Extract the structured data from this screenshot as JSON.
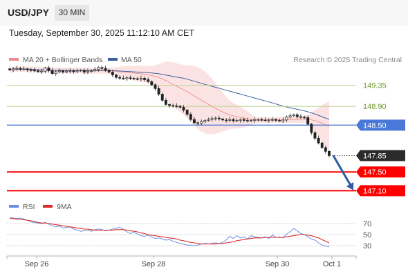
{
  "header": {
    "symbol": "USD/JPY",
    "timeframe": "30 MIN",
    "datetime": "Tuesday, September 30, 2025 11:12:10 AM CET",
    "credit": "Research © 2025 Trading Central"
  },
  "colors": {
    "bollinger": "#f08a8a",
    "bollinger_fill": "#fbdada",
    "ma50": "#3a5fa0",
    "resistance": "#b7d18c",
    "pivot": "#4a78d8",
    "support": "#ff0000",
    "arrow": "#2d5aa0",
    "rsi": "#6b8fe0",
    "rsi_ma": "#dd2a2a"
  },
  "chart_data": [
    {
      "type": "candlestick",
      "title": "USD/JPY",
      "legend": [
        "MA 20 + Bollinger Bands",
        "MA 50"
      ],
      "ylim": [
        146.9,
        149.55
      ],
      "x_ticks": [
        "Sep 26",
        "Sep 28",
        "Sep 30",
        "Oct 1"
      ],
      "close": [
        149.68,
        149.7,
        149.71,
        149.69,
        149.7,
        149.68,
        149.67,
        149.66,
        149.64,
        149.65,
        149.72,
        149.66,
        149.6,
        149.64,
        149.66,
        149.63,
        149.65,
        149.66,
        149.64,
        149.66,
        149.67,
        149.63,
        149.65,
        149.66,
        149.69,
        149.73,
        149.71,
        149.67,
        149.63,
        149.57,
        149.52,
        149.5,
        149.49,
        149.51,
        149.5,
        149.49,
        149.48,
        149.5,
        149.47,
        149.43,
        149.36,
        149.28,
        149.16,
        149.03,
        148.94,
        148.92,
        148.91,
        148.9,
        148.88,
        148.82,
        148.73,
        148.62,
        148.55,
        148.54,
        148.57,
        148.6,
        148.62,
        148.64,
        148.65,
        148.63,
        148.61,
        148.6,
        148.62,
        148.59,
        148.6,
        148.62,
        148.6,
        148.59,
        148.6,
        148.62,
        148.62,
        148.61,
        148.6,
        148.61,
        148.62,
        148.6,
        148.59,
        148.61,
        148.67,
        148.7,
        148.72,
        148.68,
        148.67,
        148.66,
        148.52,
        148.34,
        148.22,
        148.12,
        148.02,
        147.94,
        147.85
      ],
      "levels": [
        {
          "price": 149.35,
          "label": "149.35",
          "kind": "resistance"
        },
        {
          "price": 148.9,
          "label": "148.90",
          "kind": "resistance"
        },
        {
          "price": 148.5,
          "label": "148.50",
          "kind": "pivot"
        },
        {
          "price": 147.85,
          "label": "147.85",
          "kind": "last"
        },
        {
          "price": 147.5,
          "label": "147.50",
          "kind": "support"
        },
        {
          "price": 147.1,
          "label": "147.10",
          "kind": "support"
        }
      ]
    },
    {
      "type": "line",
      "legend": [
        "RSI",
        "9MA"
      ],
      "ylim": [
        15,
        85
      ],
      "y_ticks": [
        70,
        50,
        30
      ],
      "series": [
        {
          "name": "RSI",
          "values": [
            81,
            80,
            79,
            80,
            78,
            76,
            73,
            72,
            71,
            70,
            72,
            69,
            66,
            64,
            66,
            62,
            63,
            64,
            60,
            58,
            56,
            57,
            58,
            56,
            59,
            60,
            59,
            57,
            58,
            60,
            62,
            63,
            60,
            55,
            52,
            54,
            51,
            48,
            47,
            49,
            46,
            43,
            44,
            42,
            40,
            41,
            38,
            36,
            34,
            33,
            31,
            31,
            30,
            31,
            33,
            34,
            33,
            34,
            35,
            34,
            36,
            40,
            47,
            43,
            48,
            44,
            46,
            42,
            48,
            46,
            45,
            44,
            46,
            43,
            49,
            45,
            46,
            44,
            51,
            55,
            61,
            57,
            52,
            50,
            46,
            42,
            40,
            35,
            31,
            29,
            28
          ]
        },
        {
          "name": "9MA",
          "values": [
            79,
            79,
            78,
            78,
            77,
            76,
            75,
            74,
            72,
            71,
            71,
            70,
            69,
            68,
            67,
            66,
            65,
            64,
            63,
            62,
            61,
            60,
            60,
            59,
            58,
            58,
            58,
            58,
            58,
            58,
            59,
            59,
            59,
            58,
            57,
            56,
            55,
            53,
            52,
            50,
            49,
            48,
            47,
            46,
            45,
            44,
            43,
            42,
            40,
            39,
            37,
            36,
            35,
            34,
            33,
            33,
            33,
            33,
            33,
            34,
            34,
            35,
            36,
            37,
            39,
            40,
            41,
            42,
            43,
            44,
            44,
            44,
            45,
            45,
            45,
            45,
            45,
            45,
            46,
            47,
            48,
            49,
            50,
            50,
            49,
            48,
            46,
            44,
            41,
            38,
            35
          ]
        }
      ]
    }
  ]
}
